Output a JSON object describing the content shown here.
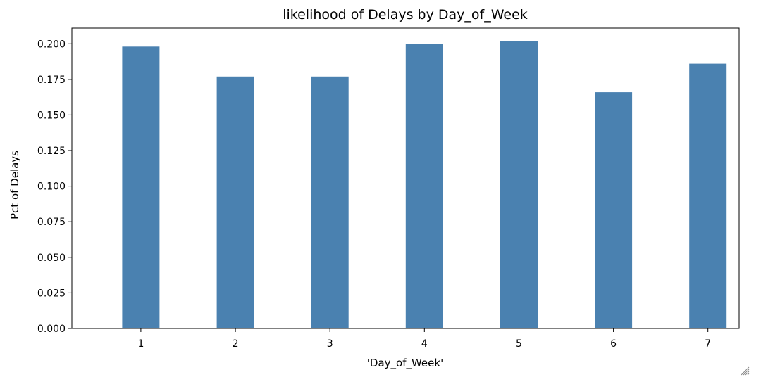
{
  "chart_data": {
    "type": "bar",
    "title": "likelihood of Delays by Day_of_Week",
    "xlabel": "'Day_of_Week'",
    "ylabel": "Pct of Delays",
    "categories": [
      "1",
      "2",
      "3",
      "4",
      "5",
      "6",
      "7"
    ],
    "values": [
      0.198,
      0.177,
      0.177,
      0.2,
      0.202,
      0.166,
      0.186
    ],
    "ylim": [
      0,
      0.211
    ],
    "yticks": [
      "0.000",
      "0.025",
      "0.050",
      "0.075",
      "0.100",
      "0.125",
      "0.150",
      "0.175",
      "0.200"
    ],
    "bar_color": "#4a81b0",
    "grid": false,
    "legend": "none"
  }
}
